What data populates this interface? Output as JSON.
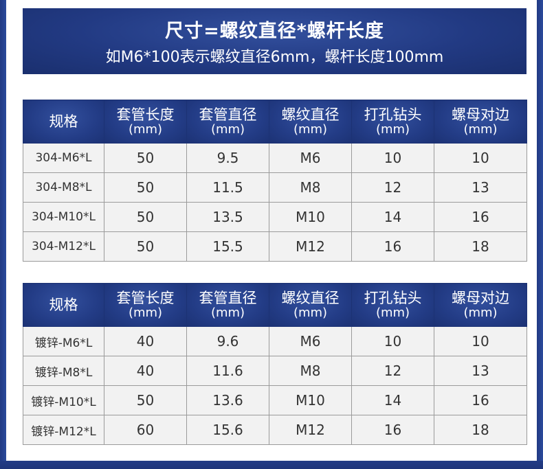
{
  "banner": {
    "title": "尺寸=螺纹直径*螺杆长度",
    "subtitle": "如M6*100表示螺纹直径6mm，螺杆长度100mm"
  },
  "columns": [
    {
      "name": "规格",
      "unit": ""
    },
    {
      "name": "套管长度",
      "unit": "(mm)"
    },
    {
      "name": "套管直径",
      "unit": "(mm)"
    },
    {
      "name": "螺纹直径",
      "unit": "(mm)"
    },
    {
      "name": "打孔钻头",
      "unit": "(mm)"
    },
    {
      "name": "螺母对边",
      "unit": "(mm)"
    }
  ],
  "table1": {
    "rows": [
      [
        "304-M6*L",
        "50",
        "9.5",
        "M6",
        "10",
        "10"
      ],
      [
        "304-M8*L",
        "50",
        "11.5",
        "M8",
        "12",
        "13"
      ],
      [
        "304-M10*L",
        "50",
        "13.5",
        "M10",
        "14",
        "16"
      ],
      [
        "304-M12*L",
        "50",
        "15.5",
        "M12",
        "16",
        "18"
      ]
    ]
  },
  "table2": {
    "rows": [
      [
        "镀锌-M6*L",
        "40",
        "9.6",
        "M6",
        "10",
        "10"
      ],
      [
        "镀锌-M8*L",
        "40",
        "11.6",
        "M8",
        "12",
        "13"
      ],
      [
        "镀锌-M10*L",
        "50",
        "13.6",
        "M10",
        "14",
        "16"
      ],
      [
        "镀锌-M12*L",
        "60",
        "15.6",
        "M12",
        "16",
        "18"
      ]
    ]
  },
  "colors": {
    "frame": "#223a83",
    "header_bg": "#233c86",
    "cell_bg": "#f2f2f2",
    "cell_text": "#333333"
  }
}
